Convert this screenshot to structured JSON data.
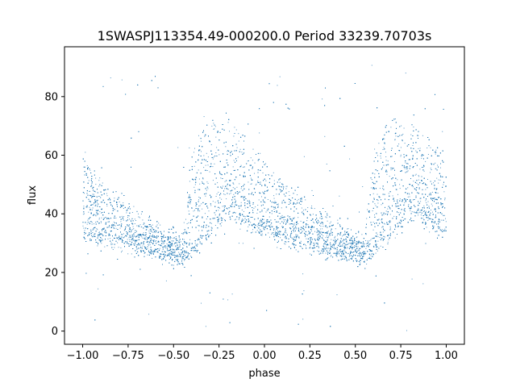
{
  "chart_data": {
    "type": "scatter",
    "title": "1SWASPJ113354.49-000200.0 Period 33239.70703s",
    "xlabel": "phase",
    "ylabel": "flux",
    "xlim": [
      -1.1,
      1.1
    ],
    "ylim": [
      -4.5,
      97
    ],
    "x_ticks": [
      -1.0,
      -0.75,
      -0.5,
      -0.25,
      0.0,
      0.25,
      0.5,
      0.75,
      1.0
    ],
    "x_tick_labels": [
      "−1.00",
      "−0.75",
      "−0.50",
      "−0.25",
      "0.00",
      "0.25",
      "0.50",
      "0.75",
      "1.00"
    ],
    "y_ticks": [
      0,
      20,
      40,
      60,
      80
    ],
    "y_tick_labels": [
      "0",
      "20",
      "40",
      "60",
      "80"
    ],
    "grid": false,
    "legend": "none",
    "marker_color": "#1f77b4",
    "series": [
      {
        "x_range": [
          -1.0,
          1.0
        ],
        "period_in_phase": 1.0,
        "approx_points": 60000,
        "profile": [
          {
            "phase": -1.0,
            "band_low": 32,
            "band_high": 58
          },
          {
            "phase": -0.9,
            "band_low": 30,
            "band_high": 48
          },
          {
            "phase": -0.8,
            "band_low": 29,
            "band_high": 42
          },
          {
            "phase": -0.7,
            "band_low": 27,
            "band_high": 37
          },
          {
            "phase": -0.6,
            "band_low": 26,
            "band_high": 33
          },
          {
            "phase": -0.5,
            "band_low": 25,
            "band_high": 31
          },
          {
            "phase": -0.45,
            "band_low": 24,
            "band_high": 45
          },
          {
            "phase": -0.4,
            "band_low": 26,
            "band_high": 60
          },
          {
            "phase": -0.3,
            "band_low": 35,
            "band_high": 68
          },
          {
            "phase": -0.2,
            "band_low": 40,
            "band_high": 72
          },
          {
            "phase": -0.1,
            "band_low": 36,
            "band_high": 65
          },
          {
            "phase": 0.0,
            "band_low": 33,
            "band_high": 58
          }
        ],
        "outlier_range": [
          0,
          93
        ]
      }
    ]
  }
}
